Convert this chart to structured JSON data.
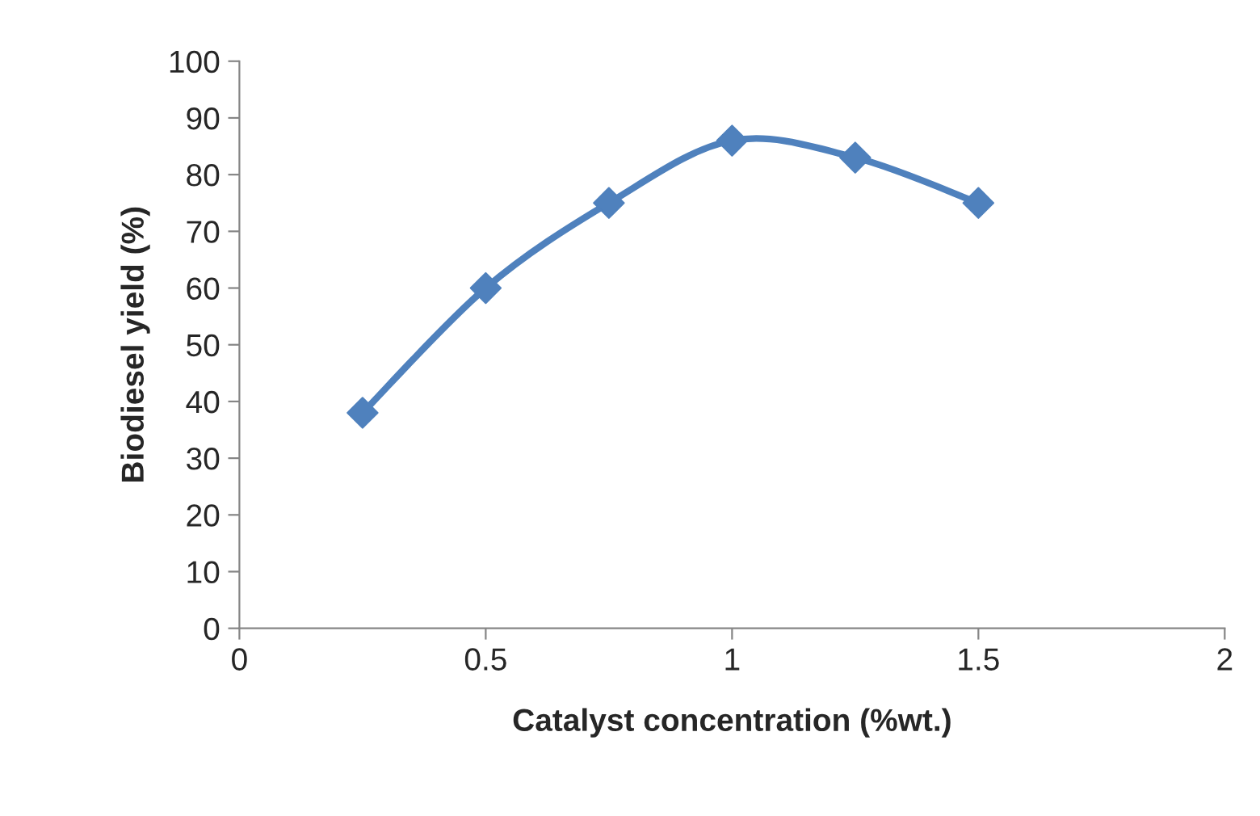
{
  "chart_data": {
    "type": "line",
    "xlabel": "Catalyst concentration (%wt.)",
    "ylabel": "Biodiesel yield (%)",
    "x": [
      0.25,
      0.5,
      0.75,
      1,
      1.25,
      1.5
    ],
    "series": [
      {
        "color": "#4f81bd",
        "values": [
          38,
          60,
          75,
          86,
          83,
          75
        ]
      }
    ],
    "xlim": [
      0,
      2
    ],
    "xticks": [
      0,
      0.5,
      1,
      1.5,
      2
    ],
    "ylim": [
      0,
      100
    ],
    "yticks": [
      0,
      10,
      20,
      30,
      40,
      50,
      60,
      70,
      80,
      90,
      100
    ],
    "grid": false,
    "legend": false,
    "marker": "diamond",
    "line_style": "solid"
  }
}
